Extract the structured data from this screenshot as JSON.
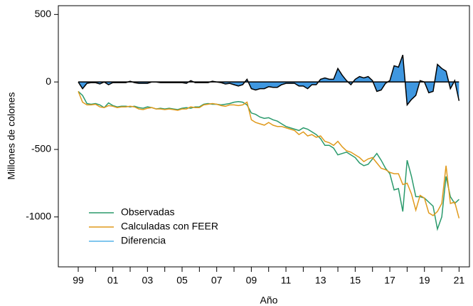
{
  "chart_data": {
    "type": "line",
    "xlabel": "Año",
    "ylabel": "Millones de colones",
    "x": [
      1999,
      1999.25,
      1999.5,
      1999.75,
      2000,
      2000.25,
      2000.5,
      2000.75,
      2001,
      2001.25,
      2001.5,
      2001.75,
      2002,
      2002.25,
      2002.5,
      2002.75,
      2003,
      2003.25,
      2003.5,
      2003.75,
      2004,
      2004.25,
      2004.5,
      2004.75,
      2005,
      2005.25,
      2005.5,
      2005.75,
      2006,
      2006.25,
      2006.5,
      2006.75,
      2007,
      2007.25,
      2007.5,
      2007.75,
      2008,
      2008.25,
      2008.5,
      2008.75,
      2009,
      2009.25,
      2009.5,
      2009.75,
      2010,
      2010.25,
      2010.5,
      2010.75,
      2011,
      2011.25,
      2011.5,
      2011.75,
      2012,
      2012.25,
      2012.5,
      2012.75,
      2013,
      2013.25,
      2013.5,
      2013.75,
      2014,
      2014.25,
      2014.5,
      2014.75,
      2015,
      2015.25,
      2015.5,
      2015.75,
      2016,
      2016.25,
      2016.5,
      2016.75,
      2017,
      2017.25,
      2017.5,
      2017.75,
      2018,
      2018.25,
      2018.5,
      2018.75,
      2019,
      2019.25,
      2019.5,
      2019.75,
      2020,
      2020.25,
      2020.5,
      2020.75,
      2021
    ],
    "series": [
      {
        "name": "Observadas",
        "color": "#2a9a6c",
        "values": [
          -70,
          -100,
          -160,
          -165,
          -160,
          -170,
          -190,
          -155,
          -175,
          -185,
          -180,
          -180,
          -185,
          -180,
          -190,
          -195,
          -185,
          -190,
          -200,
          -195,
          -200,
          -195,
          -200,
          -205,
          -195,
          -190,
          -195,
          -185,
          -185,
          -165,
          -160,
          -165,
          -165,
          -170,
          -165,
          -160,
          -150,
          -145,
          -150,
          -170,
          -230,
          -240,
          -260,
          -270,
          -265,
          -280,
          -290,
          -310,
          -330,
          -340,
          -350,
          -360,
          -340,
          -350,
          -370,
          -390,
          -420,
          -470,
          -470,
          -490,
          -540,
          -530,
          -520,
          -540,
          -560,
          -600,
          -620,
          -610,
          -570,
          -530,
          -580,
          -640,
          -680,
          -800,
          -790,
          -960,
          -580,
          -700,
          -850,
          -850,
          -860,
          -890,
          -920,
          -1090,
          -1000,
          -700,
          -850,
          -900,
          -870
        ]
      },
      {
        "name": "Calculadas con FEER",
        "color": "#e09a1c",
        "values": [
          -70,
          -150,
          -170,
          -170,
          -165,
          -185,
          -190,
          -175,
          -180,
          -190,
          -185,
          -185,
          -180,
          -185,
          -200,
          -205,
          -195,
          -190,
          -200,
          -200,
          -205,
          -200,
          -205,
          -210,
          -200,
          -200,
          -185,
          -190,
          -190,
          -170,
          -165,
          -160,
          -165,
          -175,
          -180,
          -170,
          -170,
          -175,
          -170,
          -150,
          -280,
          -300,
          -310,
          -320,
          -300,
          -320,
          -330,
          -330,
          -340,
          -350,
          -360,
          -390,
          -370,
          -400,
          -390,
          -410,
          -400,
          -440,
          -450,
          -470,
          -440,
          -480,
          -510,
          -520,
          -540,
          -560,
          -590,
          -570,
          -560,
          -600,
          -640,
          -650,
          -670,
          -680,
          -680,
          -760,
          -750,
          -830,
          -950,
          -840,
          -860,
          -970,
          -990,
          -960,
          -900,
          -620,
          -900,
          -890,
          -1010
        ]
      },
      {
        "name": "Diferencia",
        "color": "#56b4e9",
        "fill": "#3f97e0",
        "area": true,
        "values": [
          0,
          -50,
          -10,
          -5,
          -5,
          -15,
          0,
          -20,
          -5,
          -5,
          -5,
          -5,
          5,
          -5,
          -10,
          -10,
          -10,
          0,
          0,
          -5,
          -5,
          -5,
          -5,
          -5,
          -5,
          -10,
          10,
          -5,
          -5,
          -5,
          -5,
          5,
          0,
          -5,
          -15,
          -10,
          -20,
          -30,
          -20,
          20,
          -50,
          -60,
          -50,
          -50,
          -35,
          -40,
          -40,
          -20,
          -10,
          -10,
          -10,
          -30,
          -30,
          -50,
          -20,
          -20,
          20,
          30,
          20,
          20,
          100,
          50,
          10,
          -20,
          20,
          40,
          30,
          40,
          10,
          -70,
          -60,
          -10,
          10,
          120,
          110,
          200,
          -170,
          -130,
          -100,
          10,
          0,
          -80,
          -70,
          130,
          100,
          80,
          -50,
          10,
          -140
        ]
      }
    ],
    "xlim": [
      1997.85,
      2021.6
    ],
    "xticks": [
      {
        "value": 1999,
        "label": "99"
      },
      {
        "value": 2001,
        "label": "01"
      },
      {
        "value": 2003,
        "label": "03"
      },
      {
        "value": 2005,
        "label": "05"
      },
      {
        "value": 2007,
        "label": "07"
      },
      {
        "value": 2009,
        "label": "09"
      },
      {
        "value": 2011,
        "label": "11"
      },
      {
        "value": 2013,
        "label": "13"
      },
      {
        "value": 2015,
        "label": "15"
      },
      {
        "value": 2017,
        "label": "17"
      },
      {
        "value": 2019,
        "label": "19"
      },
      {
        "value": 2021,
        "label": "21"
      }
    ],
    "xminor_ticks": [
      2000,
      2002,
      2004,
      2006,
      2008,
      2010,
      2012,
      2014,
      2016,
      2018,
      2020
    ],
    "ylim": [
      -1370,
      565
    ],
    "yticks": [
      500,
      0,
      -500,
      -1000
    ],
    "grid": false,
    "legend": "lower left"
  }
}
